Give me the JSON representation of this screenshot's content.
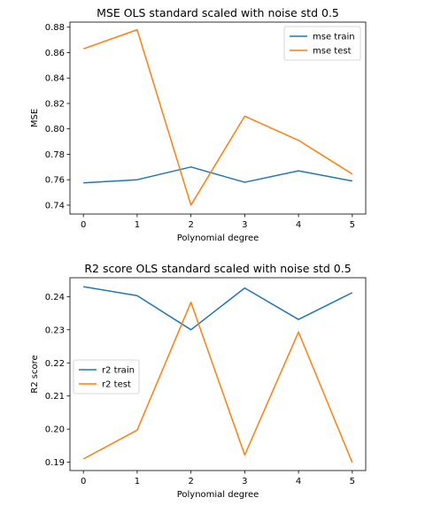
{
  "chart_data": [
    {
      "type": "line",
      "title": "MSE OLS standard scaled with noise std 0.5",
      "xlabel": "Polynomial degree",
      "ylabel": "MSE",
      "x": [
        0,
        1,
        2,
        3,
        4,
        5
      ],
      "xlim": [
        -0.25,
        5.25
      ],
      "ylim": [
        0.733,
        0.884
      ],
      "yticks": [
        0.74,
        0.76,
        0.78,
        0.8,
        0.82,
        0.84,
        0.86,
        0.88
      ],
      "ytick_labels": [
        "0.74",
        "0.76",
        "0.78",
        "0.80",
        "0.82",
        "0.84",
        "0.86",
        "0.88"
      ],
      "xticks": [
        0,
        1,
        2,
        3,
        4,
        5
      ],
      "xtick_labels": [
        "0",
        "1",
        "2",
        "3",
        "4",
        "5"
      ],
      "grid": false,
      "legend_position": "upper-right",
      "series": [
        {
          "name": "mse train",
          "color": "#1f77b4",
          "values": [
            0.7575,
            0.76,
            0.77,
            0.758,
            0.767,
            0.759
          ]
        },
        {
          "name": "mse test",
          "color": "#ff7f0e",
          "values": [
            0.863,
            0.878,
            0.74,
            0.81,
            0.791,
            0.7645
          ]
        }
      ]
    },
    {
      "type": "line",
      "title": "R2 score OLS standard scaled with noise std 0.5",
      "xlabel": "Polynomial degree",
      "ylabel": "R2 score",
      "x": [
        0,
        1,
        2,
        3,
        4,
        5
      ],
      "xlim": [
        -0.25,
        5.25
      ],
      "ylim": [
        0.1875,
        0.2457
      ],
      "yticks": [
        0.19,
        0.2,
        0.21,
        0.22,
        0.23,
        0.24
      ],
      "ytick_labels": [
        "0.19",
        "0.20",
        "0.21",
        "0.22",
        "0.23",
        "0.24"
      ],
      "xticks": [
        0,
        1,
        2,
        3,
        4,
        5
      ],
      "xtick_labels": [
        "0",
        "1",
        "2",
        "3",
        "4",
        "5"
      ],
      "grid": false,
      "legend_position": "center-left",
      "series": [
        {
          "name": "r2 train",
          "color": "#1f77b4",
          "values": [
            0.243,
            0.2403,
            0.23,
            0.2426,
            0.2331,
            0.2412
          ]
        },
        {
          "name": "r2 test",
          "color": "#ff7f0e",
          "values": [
            0.191,
            0.1997,
            0.2383,
            0.1922,
            0.2293,
            0.1899
          ]
        }
      ]
    }
  ]
}
